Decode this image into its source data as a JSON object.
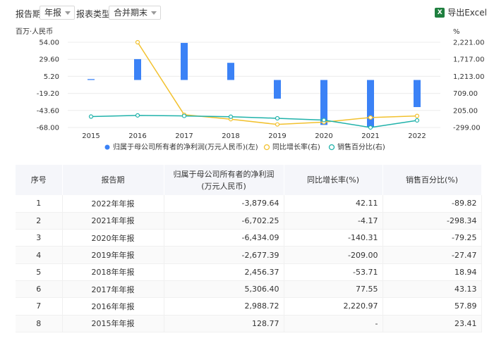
{
  "toolbar": {
    "period_label": "报告期",
    "period_value": "年报",
    "type_label": "报表类型",
    "type_value": "合并期末",
    "export_label": "导出Excel"
  },
  "chart_data": {
    "type": "bar",
    "y_left_unit": "百万·人民币",
    "y_right_unit": "%",
    "y_left_ticks": [
      "54.00",
      "29.60",
      "5.20",
      "-19.20",
      "-43.60",
      "-68.00"
    ],
    "y_right_ticks": [
      "2,221.00",
      "1,717.00",
      "1,213.00",
      "709.00",
      "205.00",
      "-299.00"
    ],
    "y_left_range": [
      -68,
      54
    ],
    "y_right_range": [
      -299,
      2221
    ],
    "categories": [
      "2015",
      "2016",
      "2017",
      "2018",
      "2019",
      "2020",
      "2021",
      "2022"
    ],
    "series": [
      {
        "name": "归属于母公司所有者的净利润(万元人民币)(左)",
        "kind": "bar",
        "axis": "left",
        "color": "#3b82f6",
        "values": [
          1.2877,
          29.8872,
          53.064,
          24.5637,
          -26.7739,
          -64.3409,
          -67.0225,
          -38.7964
        ]
      },
      {
        "name": "同比增长率(右)",
        "kind": "line",
        "axis": "right",
        "color": "#f2c12e",
        "values": [
          null,
          2220.97,
          77.55,
          -53.71,
          -209.0,
          -140.31,
          -4.17,
          42.11
        ]
      },
      {
        "name": "销售百分比(右)",
        "kind": "line",
        "axis": "right",
        "color": "#20b2aa",
        "values": [
          23.41,
          57.89,
          43.13,
          18.94,
          -27.47,
          -79.25,
          -298.34,
          -89.82
        ]
      }
    ],
    "legend_position": "bottom"
  },
  "table": {
    "headers": [
      "序号",
      "报告期",
      "归属于母公司所有者的净利润(万元人民币)",
      "同比增长率(%)",
      "销售百分比(%)"
    ],
    "rows": [
      [
        "1",
        "2022年年报",
        "-3,879.64",
        "42.11",
        "-89.82"
      ],
      [
        "2",
        "2021年年报",
        "-6,702.25",
        "-4.17",
        "-298.34"
      ],
      [
        "3",
        "2020年年报",
        "-6,434.09",
        "-140.31",
        "-79.25"
      ],
      [
        "4",
        "2019年年报",
        "-2,677.39",
        "-209.00",
        "-27.47"
      ],
      [
        "5",
        "2018年年报",
        "2,456.37",
        "-53.71",
        "18.94"
      ],
      [
        "6",
        "2017年年报",
        "5,306.40",
        "77.55",
        "43.13"
      ],
      [
        "7",
        "2016年年报",
        "2,988.72",
        "2,220.97",
        "57.89"
      ],
      [
        "8",
        "2015年年报",
        "128.77",
        "-",
        "23.41"
      ]
    ]
  }
}
